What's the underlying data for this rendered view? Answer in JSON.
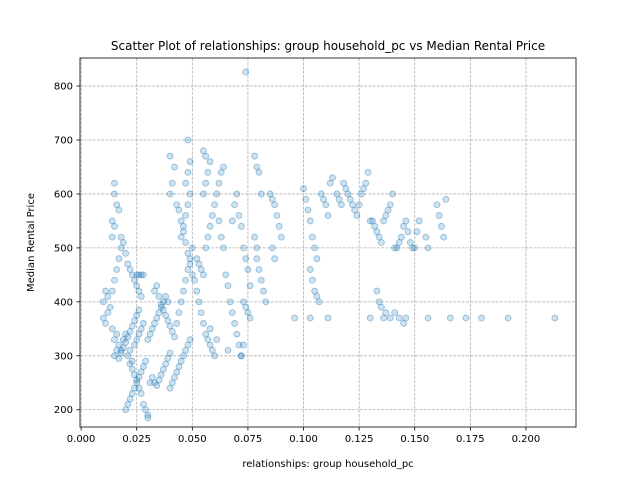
{
  "chart_data": {
    "type": "scatter",
    "title": "Scatter Plot of relationships: group household_pc vs Median Rental Price",
    "xlabel": "relationships: group household_pc",
    "ylabel": "Median Rental Price",
    "xlim": [
      -0.0005,
      0.2225
    ],
    "ylim": [
      168,
      852
    ],
    "xticks": [
      0.0,
      0.025,
      0.05,
      0.075,
      0.1,
      0.125,
      0.15,
      0.175,
      0.2
    ],
    "xtick_labels": [
      "0.000",
      "0.025",
      "0.050",
      "0.075",
      "0.100",
      "0.125",
      "0.150",
      "0.175",
      "0.200"
    ],
    "yticks": [
      200,
      300,
      400,
      500,
      600,
      700,
      800
    ],
    "ytick_labels": [
      "200",
      "300",
      "400",
      "500",
      "600",
      "700",
      "800"
    ],
    "grid": true,
    "color": "#1f77b4",
    "series": [
      {
        "points": [
          [
            0.01,
            370
          ],
          [
            0.011,
            360
          ],
          [
            0.012,
            380
          ],
          [
            0.01,
            400
          ],
          [
            0.011,
            420
          ],
          [
            0.012,
            410
          ],
          [
            0.013,
            390
          ],
          [
            0.014,
            350
          ],
          [
            0.015,
            330
          ],
          [
            0.016,
            340
          ],
          [
            0.017,
            320
          ],
          [
            0.018,
            310
          ],
          [
            0.019,
            330
          ],
          [
            0.02,
            340
          ],
          [
            0.021,
            300
          ],
          [
            0.022,
            310
          ],
          [
            0.023,
            290
          ],
          [
            0.024,
            320
          ],
          [
            0.025,
            330
          ],
          [
            0.026,
            340
          ],
          [
            0.027,
            350
          ],
          [
            0.028,
            360
          ],
          [
            0.015,
            300
          ],
          [
            0.016,
            310
          ],
          [
            0.017,
            295
          ],
          [
            0.018,
            305
          ],
          [
            0.019,
            315
          ],
          [
            0.02,
            325
          ],
          [
            0.021,
            335
          ],
          [
            0.022,
            345
          ],
          [
            0.023,
            355
          ],
          [
            0.024,
            365
          ],
          [
            0.025,
            375
          ],
          [
            0.026,
            385
          ],
          [
            0.014,
            420
          ],
          [
            0.015,
            440
          ],
          [
            0.016,
            460
          ],
          [
            0.017,
            480
          ],
          [
            0.018,
            500
          ],
          [
            0.014,
            520
          ],
          [
            0.015,
            540
          ],
          [
            0.014,
            550
          ],
          [
            0.015,
            600
          ],
          [
            0.015,
            620
          ],
          [
            0.016,
            580
          ],
          [
            0.017,
            570
          ],
          [
            0.018,
            520
          ],
          [
            0.019,
            510
          ],
          [
            0.02,
            490
          ],
          [
            0.021,
            470
          ],
          [
            0.022,
            460
          ],
          [
            0.023,
            450
          ],
          [
            0.024,
            440
          ],
          [
            0.025,
            450
          ],
          [
            0.026,
            450
          ],
          [
            0.027,
            450
          ],
          [
            0.028,
            450
          ],
          [
            0.025,
            430
          ],
          [
            0.026,
            420
          ],
          [
            0.027,
            410
          ],
          [
            0.02,
            200
          ],
          [
            0.021,
            210
          ],
          [
            0.022,
            220
          ],
          [
            0.023,
            230
          ],
          [
            0.024,
            240
          ],
          [
            0.025,
            250
          ],
          [
            0.026,
            260
          ],
          [
            0.027,
            270
          ],
          [
            0.028,
            280
          ],
          [
            0.029,
            290
          ],
          [
            0.03,
            190
          ],
          [
            0.03,
            185
          ],
          [
            0.029,
            200
          ],
          [
            0.028,
            210
          ],
          [
            0.027,
            230
          ],
          [
            0.026,
            240
          ],
          [
            0.025,
            255
          ],
          [
            0.024,
            265
          ],
          [
            0.023,
            275
          ],
          [
            0.022,
            285
          ],
          [
            0.031,
            250
          ],
          [
            0.032,
            260
          ],
          [
            0.033,
            250
          ],
          [
            0.034,
            245
          ],
          [
            0.035,
            255
          ],
          [
            0.036,
            265
          ],
          [
            0.037,
            275
          ],
          [
            0.038,
            285
          ],
          [
            0.039,
            295
          ],
          [
            0.04,
            305
          ],
          [
            0.03,
            330
          ],
          [
            0.031,
            340
          ],
          [
            0.032,
            350
          ],
          [
            0.033,
            360
          ],
          [
            0.034,
            370
          ],
          [
            0.035,
            380
          ],
          [
            0.036,
            390
          ],
          [
            0.037,
            400
          ],
          [
            0.038,
            410
          ],
          [
            0.039,
            400
          ],
          [
            0.033,
            420
          ],
          [
            0.034,
            430
          ],
          [
            0.035,
            410
          ],
          [
            0.036,
            395
          ],
          [
            0.037,
            385
          ],
          [
            0.038,
            375
          ],
          [
            0.039,
            365
          ],
          [
            0.04,
            355
          ],
          [
            0.041,
            345
          ],
          [
            0.042,
            335
          ],
          [
            0.04,
            240
          ],
          [
            0.041,
            250
          ],
          [
            0.042,
            260
          ],
          [
            0.043,
            270
          ],
          [
            0.044,
            280
          ],
          [
            0.045,
            290
          ],
          [
            0.046,
            300
          ],
          [
            0.047,
            310
          ],
          [
            0.048,
            320
          ],
          [
            0.049,
            330
          ],
          [
            0.043,
            360
          ],
          [
            0.044,
            380
          ],
          [
            0.045,
            400
          ],
          [
            0.046,
            420
          ],
          [
            0.047,
            440
          ],
          [
            0.048,
            460
          ],
          [
            0.049,
            480
          ],
          [
            0.05,
            500
          ],
          [
            0.045,
            520
          ],
          [
            0.046,
            540
          ],
          [
            0.047,
            560
          ],
          [
            0.048,
            580
          ],
          [
            0.049,
            600
          ],
          [
            0.047,
            620
          ],
          [
            0.048,
            640
          ],
          [
            0.049,
            660
          ],
          [
            0.048,
            700
          ],
          [
            0.04,
            600
          ],
          [
            0.041,
            620
          ],
          [
            0.042,
            650
          ],
          [
            0.04,
            670
          ],
          [
            0.043,
            580
          ],
          [
            0.044,
            570
          ],
          [
            0.045,
            550
          ],
          [
            0.046,
            530
          ],
          [
            0.047,
            510
          ],
          [
            0.048,
            490
          ],
          [
            0.049,
            470
          ],
          [
            0.05,
            450
          ],
          [
            0.051,
            440
          ],
          [
            0.052,
            420
          ],
          [
            0.053,
            400
          ],
          [
            0.054,
            380
          ],
          [
            0.055,
            360
          ],
          [
            0.056,
            340
          ],
          [
            0.057,
            330
          ],
          [
            0.058,
            320
          ],
          [
            0.059,
            310
          ],
          [
            0.06,
            300
          ],
          [
            0.052,
            480
          ],
          [
            0.053,
            470
          ],
          [
            0.054,
            460
          ],
          [
            0.055,
            450
          ],
          [
            0.056,
            500
          ],
          [
            0.057,
            520
          ],
          [
            0.058,
            540
          ],
          [
            0.059,
            560
          ],
          [
            0.06,
            580
          ],
          [
            0.055,
            600
          ],
          [
            0.056,
            620
          ],
          [
            0.057,
            640
          ],
          [
            0.058,
            660
          ],
          [
            0.055,
            680
          ],
          [
            0.056,
            670
          ],
          [
            0.061,
            600
          ],
          [
            0.062,
            620
          ],
          [
            0.063,
            640
          ],
          [
            0.064,
            650
          ],
          [
            0.062,
            550
          ],
          [
            0.063,
            520
          ],
          [
            0.064,
            500
          ],
          [
            0.065,
            450
          ],
          [
            0.066,
            430
          ],
          [
            0.067,
            400
          ],
          [
            0.068,
            380
          ],
          [
            0.069,
            360
          ],
          [
            0.07,
            340
          ],
          [
            0.071,
            320
          ],
          [
            0.072,
            300
          ],
          [
            0.068,
            550
          ],
          [
            0.069,
            580
          ],
          [
            0.07,
            600
          ],
          [
            0.071,
            560
          ],
          [
            0.072,
            540
          ],
          [
            0.073,
            500
          ],
          [
            0.074,
            480
          ],
          [
            0.075,
            460
          ],
          [
            0.076,
            430
          ],
          [
            0.073,
            400
          ],
          [
            0.074,
            390
          ],
          [
            0.075,
            380
          ],
          [
            0.076,
            370
          ],
          [
            0.074,
            826
          ],
          [
            0.078,
            670
          ],
          [
            0.079,
            650
          ],
          [
            0.08,
            640
          ],
          [
            0.081,
            600
          ],
          [
            0.079,
            480
          ],
          [
            0.08,
            460
          ],
          [
            0.081,
            440
          ],
          [
            0.082,
            420
          ],
          [
            0.083,
            400
          ],
          [
            0.078,
            520
          ],
          [
            0.079,
            500
          ],
          [
            0.085,
            600
          ],
          [
            0.086,
            590
          ],
          [
            0.087,
            580
          ],
          [
            0.088,
            560
          ],
          [
            0.089,
            540
          ],
          [
            0.09,
            520
          ],
          [
            0.086,
            500
          ],
          [
            0.087,
            480
          ],
          [
            0.1,
            610
          ],
          [
            0.101,
            590
          ],
          [
            0.102,
            570
          ],
          [
            0.103,
            550
          ],
          [
            0.104,
            520
          ],
          [
            0.105,
            500
          ],
          [
            0.106,
            480
          ],
          [
            0.103,
            460
          ],
          [
            0.104,
            440
          ],
          [
            0.105,
            420
          ],
          [
            0.106,
            410
          ],
          [
            0.107,
            400
          ],
          [
            0.108,
            600
          ],
          [
            0.109,
            590
          ],
          [
            0.11,
            580
          ],
          [
            0.111,
            560
          ],
          [
            0.112,
            620
          ],
          [
            0.113,
            630
          ],
          [
            0.115,
            600
          ],
          [
            0.116,
            590
          ],
          [
            0.117,
            580
          ],
          [
            0.118,
            620
          ],
          [
            0.119,
            610
          ],
          [
            0.12,
            600
          ],
          [
            0.121,
            590
          ],
          [
            0.122,
            580
          ],
          [
            0.123,
            570
          ],
          [
            0.124,
            560
          ],
          [
            0.125,
            580
          ],
          [
            0.126,
            600
          ],
          [
            0.127,
            610
          ],
          [
            0.128,
            620
          ],
          [
            0.129,
            640
          ],
          [
            0.13,
            550
          ],
          [
            0.131,
            550
          ],
          [
            0.132,
            540
          ],
          [
            0.133,
            530
          ],
          [
            0.134,
            520
          ],
          [
            0.135,
            510
          ],
          [
            0.136,
            550
          ],
          [
            0.137,
            560
          ],
          [
            0.138,
            570
          ],
          [
            0.139,
            580
          ],
          [
            0.14,
            600
          ],
          [
            0.141,
            500
          ],
          [
            0.142,
            500
          ],
          [
            0.143,
            510
          ],
          [
            0.144,
            520
          ],
          [
            0.145,
            540
          ],
          [
            0.146,
            550
          ],
          [
            0.147,
            530
          ],
          [
            0.148,
            510
          ],
          [
            0.149,
            500
          ],
          [
            0.15,
            500
          ],
          [
            0.151,
            530
          ],
          [
            0.152,
            550
          ],
          [
            0.155,
            520
          ],
          [
            0.156,
            500
          ],
          [
            0.16,
            580
          ],
          [
            0.161,
            560
          ],
          [
            0.162,
            540
          ],
          [
            0.163,
            520
          ],
          [
            0.164,
            590
          ],
          [
            0.133,
            420
          ],
          [
            0.134,
            400
          ],
          [
            0.135,
            390
          ],
          [
            0.137,
            380
          ],
          [
            0.139,
            370
          ],
          [
            0.141,
            380
          ],
          [
            0.143,
            370
          ],
          [
            0.145,
            360
          ],
          [
            0.13,
            370
          ],
          [
            0.096,
            370
          ],
          [
            0.103,
            370
          ],
          [
            0.111,
            370
          ],
          [
            0.136,
            370
          ],
          [
            0.146,
            370
          ],
          [
            0.156,
            370
          ],
          [
            0.166,
            370
          ],
          [
            0.173,
            370
          ],
          [
            0.18,
            370
          ],
          [
            0.192,
            370
          ],
          [
            0.213,
            370
          ],
          [
            0.072,
            300
          ],
          [
            0.073,
            320
          ],
          [
            0.066,
            310
          ],
          [
            0.061,
            330
          ],
          [
            0.058,
            350
          ]
        ]
      }
    ]
  }
}
